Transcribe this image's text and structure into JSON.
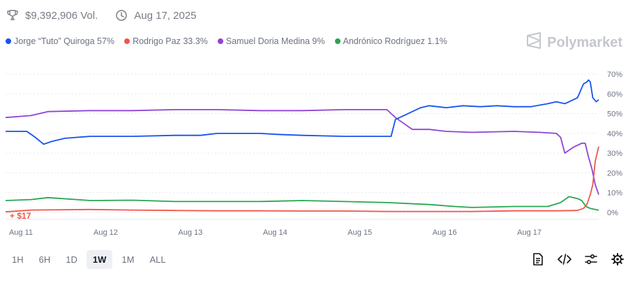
{
  "header": {
    "volume": "$9,392,906 Vol.",
    "date": "Aug 17, 2025",
    "brand": "Polymarket"
  },
  "legend": [
    {
      "label": "Jorge “Tuto” Quiroga 57%",
      "color": "#1652f0"
    },
    {
      "label": "Rodrigo Paz 33.3%",
      "color": "#f0564a"
    },
    {
      "label": "Samuel Doria Medina 9%",
      "color": "#8e44d6"
    },
    {
      "label": "Andrónico Rodríguez 1.1%",
      "color": "#27a74f"
    }
  ],
  "annotation": "+ $17",
  "ranges": [
    "1H",
    "6H",
    "1D",
    "1W",
    "1M",
    "ALL"
  ],
  "active_range": "1W",
  "chart_data": {
    "type": "line",
    "xlabels": [
      "Aug 11",
      "Aug 12",
      "Aug 13",
      "Aug 14",
      "Aug 15",
      "Aug 16",
      "Aug 17"
    ],
    "yticks": [
      "0%",
      "10%",
      "20%",
      "30%",
      "40%",
      "50%",
      "60%",
      "70%"
    ],
    "ylim": [
      0,
      70
    ],
    "xlim": [
      0,
      7.0
    ],
    "grid": true,
    "series": [
      {
        "name": "Jorge “Tuto” Quiroga",
        "color": "#1652f0",
        "x": [
          0,
          0.25,
          0.35,
          0.45,
          0.55,
          0.7,
          1.0,
          1.5,
          2.0,
          2.3,
          2.5,
          3.0,
          3.2,
          3.5,
          4.0,
          4.3,
          4.45,
          4.55,
          4.6,
          4.7,
          4.8,
          4.9,
          5.0,
          5.2,
          5.4,
          5.6,
          5.8,
          6.0,
          6.2,
          6.4,
          6.5,
          6.6,
          6.75,
          6.8,
          6.82,
          6.86,
          6.88,
          6.9,
          6.93,
          6.97,
          7.0
        ],
        "y": [
          41,
          41,
          38,
          34.5,
          36,
          37.5,
          38.5,
          38.5,
          39,
          39,
          40,
          40,
          39.5,
          39,
          38.5,
          38.5,
          38.5,
          38.5,
          47,
          49,
          51,
          53,
          54,
          53,
          54,
          53.5,
          54,
          53.5,
          53.5,
          55,
          56,
          55,
          58,
          63,
          65,
          66,
          67,
          66,
          58,
          56,
          57
        ]
      },
      {
        "name": "Rodrigo Paz",
        "color": "#f0564a",
        "x": [
          0,
          0.3,
          1.0,
          1.5,
          2.0,
          2.5,
          3.0,
          3.5,
          4.0,
          4.5,
          5.0,
          5.5,
          6.0,
          6.5,
          6.75,
          6.82,
          6.86,
          6.9,
          6.93,
          6.96,
          7.0
        ],
        "y": [
          0.3,
          1.2,
          1.5,
          1.2,
          1.0,
          0.8,
          0.8,
          0.7,
          0.7,
          0.5,
          0.5,
          0.5,
          0.8,
          0.8,
          1.0,
          2,
          4,
          9,
          14,
          26,
          33.3
        ]
      },
      {
        "name": "Samuel Doria Medina",
        "color": "#8e44d6",
        "x": [
          0,
          0.3,
          0.5,
          1.0,
          1.5,
          2.0,
          2.5,
          3.0,
          3.5,
          4.0,
          4.4,
          4.5,
          4.6,
          4.7,
          4.8,
          5.0,
          5.2,
          5.5,
          6.0,
          6.3,
          6.5,
          6.55,
          6.6,
          6.7,
          6.8,
          6.84,
          6.88,
          6.92,
          6.96,
          7.0
        ],
        "y": [
          48,
          49,
          51,
          51.5,
          51.5,
          52,
          52,
          51.5,
          51.5,
          52,
          52,
          52,
          48,
          45,
          42,
          42,
          41,
          40.5,
          41,
          40.5,
          40,
          38,
          30,
          33,
          35,
          35,
          28,
          22,
          14,
          9
        ]
      },
      {
        "name": "Andrónico Rodríguez",
        "color": "#27a74f",
        "x": [
          0,
          0.3,
          0.5,
          1.0,
          1.5,
          2.0,
          2.5,
          3.0,
          3.5,
          4.0,
          4.5,
          5.0,
          5.3,
          5.5,
          6.0,
          6.4,
          6.55,
          6.65,
          6.75,
          6.8,
          6.85,
          6.9,
          7.0
        ],
        "y": [
          6,
          6.5,
          7.5,
          6,
          6.2,
          5.5,
          5.5,
          5.5,
          6,
          5.5,
          5,
          4,
          3,
          2.5,
          3,
          3,
          5,
          8,
          7,
          6,
          3,
          2,
          1.1
        ]
      }
    ]
  }
}
